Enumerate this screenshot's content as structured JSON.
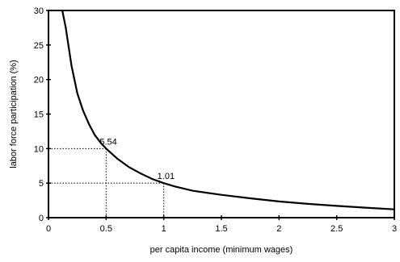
{
  "chart_data": {
    "type": "line",
    "xlabel": "per capita income (minimum wages)",
    "ylabel": "labor force participation (%)",
    "xlim": [
      0,
      3
    ],
    "ylim": [
      0,
      30
    ],
    "x_ticks": [
      0,
      0.5,
      1,
      1.5,
      2,
      2.5,
      3
    ],
    "x_tick_labels": [
      "0",
      "0.5",
      "1",
      "1.5",
      "2",
      "2.5",
      "3"
    ],
    "y_ticks": [
      0,
      5,
      10,
      15,
      20,
      25,
      30
    ],
    "y_tick_labels": [
      "0",
      "5",
      "10",
      "15",
      "20",
      "25",
      "30"
    ],
    "grid": false,
    "legend": "none",
    "series": [
      {
        "x": [
          0.12,
          0.15,
          0.2,
          0.25,
          0.3,
          0.35,
          0.4,
          0.45,
          0.5,
          0.6,
          0.7,
          0.8,
          0.9,
          1.0,
          1.1,
          1.25,
          1.5,
          1.75,
          2.0,
          2.25,
          2.5,
          2.75,
          3.0
        ],
        "y": [
          30.0,
          27.5,
          22.0,
          18.0,
          15.5,
          13.6,
          12.0,
          10.9,
          10.0,
          8.5,
          7.3,
          6.4,
          5.6,
          5.0,
          4.5,
          3.9,
          3.3,
          2.8,
          2.35,
          2.0,
          1.7,
          1.45,
          1.2
        ],
        "color": "#000000"
      }
    ],
    "annotations": [
      {
        "text": "5.54",
        "x": 0.5,
        "y": 10
      },
      {
        "text": "1.01",
        "x": 1.0,
        "y": 5
      }
    ]
  }
}
